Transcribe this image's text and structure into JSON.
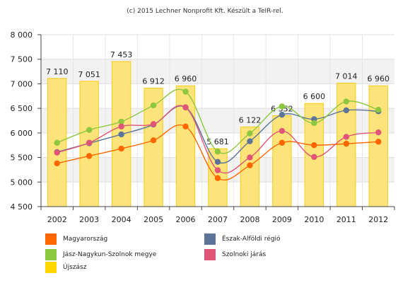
{
  "credit": "(c) 2015 Lechner Nonprofit Kft. Készült a TeIR-rel.",
  "chart_data": {
    "type": "bar+line",
    "categories": [
      "2002",
      "2003",
      "2004",
      "2005",
      "2006",
      "2007",
      "2008",
      "2009",
      "2010",
      "2011",
      "2012"
    ],
    "ylim": [
      4500,
      8000
    ],
    "yticks": [
      4500,
      5000,
      5500,
      6000,
      6500,
      7000,
      7500,
      8000
    ],
    "ytick_labels": [
      "4 500",
      "5 000",
      "5 500",
      "6 000",
      "6 500",
      "7 000",
      "7 500",
      "8 000"
    ],
    "grid": true,
    "legend_position": "bottom",
    "bar_series": {
      "name": "Újszász",
      "color": "#ffd700",
      "values": [
        7110,
        7051,
        7453,
        6912,
        6960,
        5681,
        6122,
        6352,
        6600,
        7014,
        6960
      ],
      "labels": [
        "7 110",
        "7 051",
        "7 453",
        "6 912",
        "6 960",
        "5 681",
        "6 122",
        "6 352",
        "6 600",
        "7 014",
        "6 960"
      ]
    },
    "line_series": [
      {
        "name": "Magyarország",
        "color": "#ff6600",
        "values": [
          5380,
          5530,
          5680,
          5850,
          6130,
          5080,
          5340,
          5800,
          5750,
          5780,
          5820
        ]
      },
      {
        "name": "Észak-Alföldi régió",
        "color": "#5b7497",
        "values": [
          5610,
          5790,
          5970,
          6170,
          6520,
          5410,
          5830,
          6370,
          6280,
          6460,
          6440
        ]
      },
      {
        "name": "Jász-Nagykun-Szolnok megye",
        "color": "#8dc63f",
        "values": [
          5800,
          6060,
          6230,
          6560,
          6840,
          5620,
          5990,
          6540,
          6200,
          6640,
          6470
        ]
      },
      {
        "name": "Szolnoki járás",
        "color": "#e05577",
        "values": [
          5600,
          5800,
          6130,
          6180,
          6520,
          5240,
          5500,
          6040,
          5510,
          5920,
          6010
        ]
      }
    ]
  },
  "legend": {
    "items": [
      {
        "label": "Magyarország",
        "color": "#ff6600"
      },
      {
        "label": "Észak-Alföldi régió",
        "color": "#5b7497"
      },
      {
        "label": "Jász-Nagykun-Szolnok megye",
        "color": "#8dc63f"
      },
      {
        "label": "Szolnoki járás",
        "color": "#e05577"
      },
      {
        "label": "Újszász",
        "color": "#ffd700"
      }
    ]
  }
}
